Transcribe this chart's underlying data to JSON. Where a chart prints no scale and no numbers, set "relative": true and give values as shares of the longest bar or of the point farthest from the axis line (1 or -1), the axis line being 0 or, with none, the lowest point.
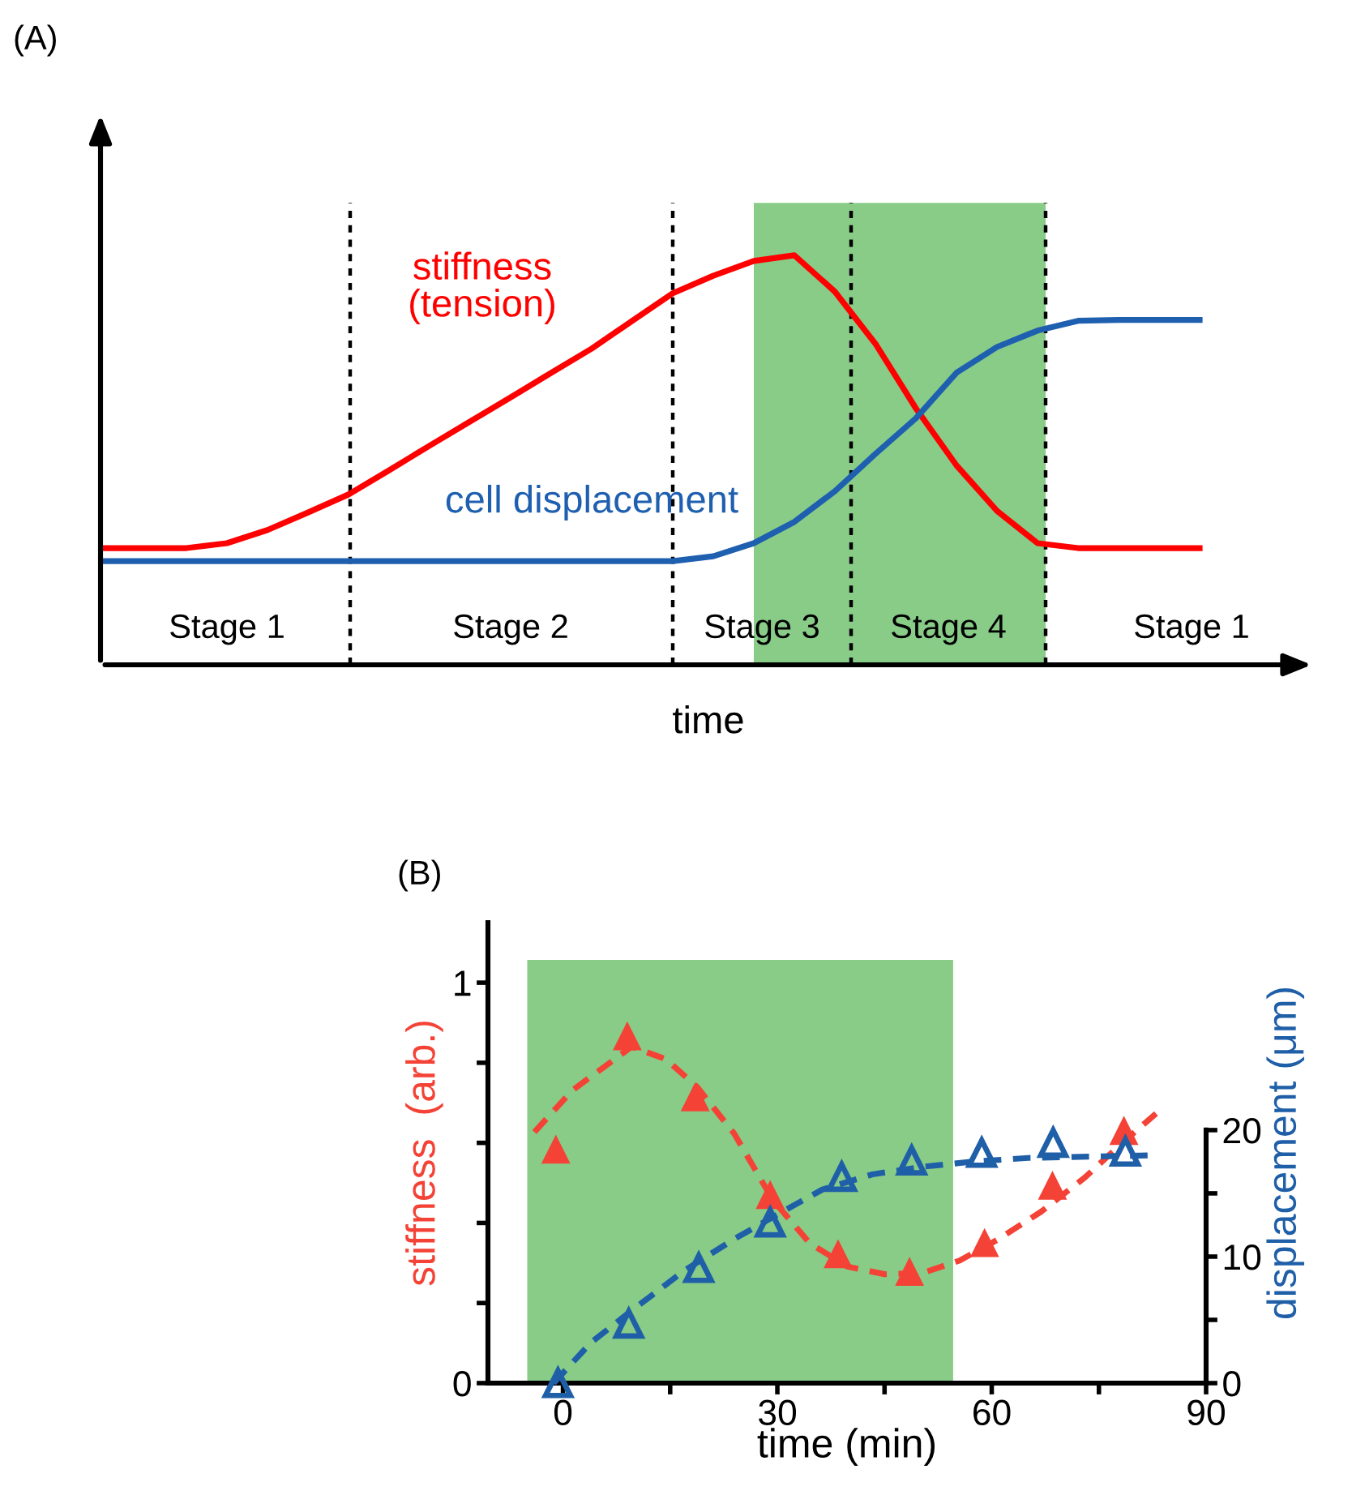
{
  "chart_data": [
    {
      "type": "line",
      "relative": true,
      "xlabel": "time",
      "grid": false,
      "categories": [
        null,
        null,
        null,
        null,
        null,
        null,
        null,
        null,
        null,
        null,
        null,
        null,
        null,
        null,
        null,
        null,
        null,
        null,
        null,
        null,
        null,
        null,
        null,
        null,
        null,
        null,
        null,
        null
      ],
      "series": [
        {
          "name": "stiffness\n(tension)",
          "color": "#ff0000",
          "values": [
            0.285,
            0.285,
            0.285,
            0.297,
            0.329,
            0.372,
            0.416,
            0.475,
            0.535,
            0.594,
            0.653,
            0.713,
            0.772,
            0.84,
            0.907,
            0.95,
            0.986,
            1.0,
            0.911,
            0.784,
            0.626,
            0.487,
            0.376,
            0.297,
            0.285,
            0.285,
            0.285,
            0.285
          ]
        },
        {
          "name": "cell displacement",
          "color": "#1f5fb0",
          "values": [
            0.253,
            0.253,
            0.253,
            0.253,
            0.253,
            0.253,
            0.253,
            0.253,
            0.253,
            0.253,
            0.253,
            0.253,
            0.253,
            0.253,
            0.253,
            0.265,
            0.297,
            0.349,
            0.424,
            0.515,
            0.602,
            0.713,
            0.776,
            0.816,
            0.84,
            0.842,
            0.842,
            0.842
          ]
        }
      ],
      "annotations": [
        "(A)",
        "Stage 1",
        "Stage 2",
        "Stage 3",
        "Stage 4",
        "Stage 1"
      ]
    },
    {
      "type": "scatter",
      "xlabel": "time (min)",
      "ylabel": "stiffness  (arb.)",
      "y2label": "displacement (μm)",
      "grid": false,
      "xlim": [
        -10.5,
        90
      ],
      "xticks": [
        0,
        {
          "value": 15,
          "label": null
        },
        30,
        {
          "value": 45,
          "label": null
        },
        60,
        {
          "value": 75,
          "label": null
        },
        90
      ],
      "ylim": [
        0,
        1.15
      ],
      "yticks": [
        0,
        {
          "value": 0.2,
          "label": null
        },
        {
          "value": 0.4,
          "label": null
        },
        {
          "value": 0.6,
          "label": null
        },
        {
          "value": 0.8,
          "label": null
        },
        1
      ],
      "y2lim": [
        0,
        36.4
      ],
      "y2ticks": [
        0,
        {
          "value": 5,
          "label": null
        },
        10,
        {
          "value": 15,
          "label": null
        },
        20
      ],
      "bands": [
        {
          "axis": "x",
          "from": -5,
          "to": 54.6,
          "color": "#88cc88"
        }
      ],
      "series": [
        {
          "type": "scatter",
          "marker": "triangle",
          "color": "#f44336",
          "x": [
            -1,
            9,
            18.5,
            29,
            38.5,
            48.5,
            59,
            68.5,
            78.5
          ],
          "values": [
            0.58,
            0.863,
            0.711,
            0.467,
            0.319,
            0.275,
            0.347,
            0.49,
            0.627
          ]
        },
        {
          "type": "line",
          "line_style": "dashed",
          "color": "#f44336",
          "x": [
            -4,
            1.3,
            9.6,
            14.4,
            18.8,
            24,
            29.3,
            34.5,
            39.8,
            45,
            50.3,
            55.5,
            60.8,
            66.9,
            73,
            78.2,
            83
          ],
          "values": [
            0.627,
            0.731,
            0.84,
            0.809,
            0.739,
            0.622,
            0.459,
            0.35,
            0.291,
            0.272,
            0.275,
            0.306,
            0.358,
            0.428,
            0.513,
            0.599,
            0.673
          ]
        },
        {
          "type": "scatter",
          "axis": "y2",
          "marker": "triangle",
          "color": "#1f5fa8",
          "x": [
            -0.7,
            9.2,
            19,
            29,
            39,
            48.8,
            58.6,
            68.6,
            78.7
          ],
          "values": [
            0,
            4.7,
            9.1,
            12.7,
            16.3,
            17.6,
            18.2,
            19.0,
            18.3
          ]
        },
        {
          "type": "line",
          "axis": "y2",
          "line_style": "dashed",
          "color": "#1f5fa8",
          "x": [
            -1.3,
            3.9,
            10,
            17,
            24,
            29.3,
            36.3,
            43.3,
            50.3,
            57.3,
            65.1,
            73.9,
            82.2
          ],
          "values": [
            0,
            3.2,
            5.9,
            8.9,
            11.4,
            13.1,
            15.3,
            16.5,
            17.1,
            17.5,
            17.8,
            17.9,
            18.0
          ]
        }
      ],
      "annotations": [
        "(B)"
      ]
    }
  ]
}
